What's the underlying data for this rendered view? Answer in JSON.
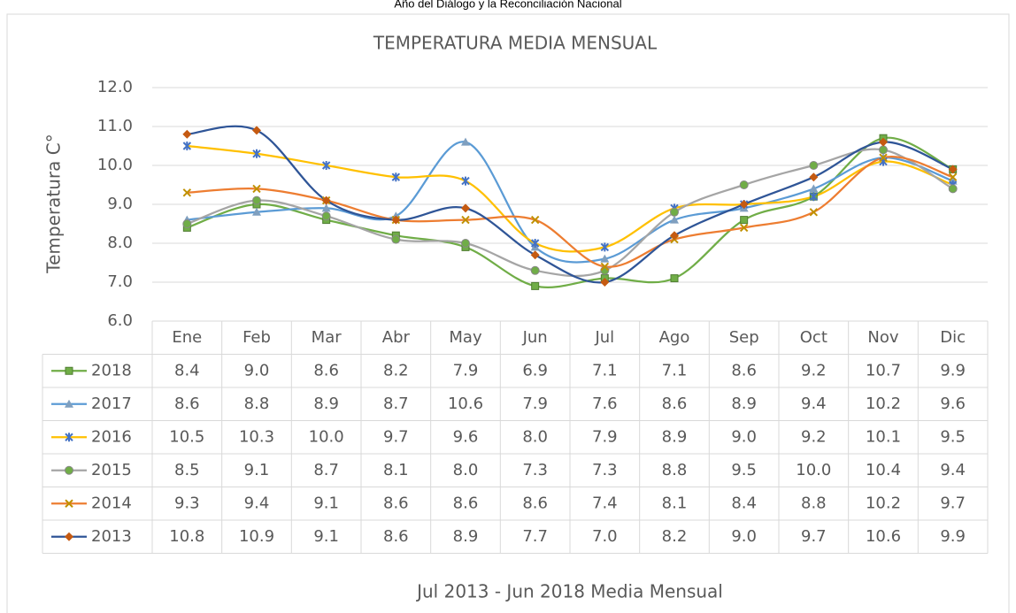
{
  "header": "Año del Diálogo y la Reconciliación Nacional",
  "chart_data": {
    "type": "line",
    "title": "TEMPERATURA MEDIA MENSUAL",
    "y_label": "Temperatura C°",
    "x_label": "Jul 2013 - Jun 2018 Media Mensual",
    "categories": [
      "Ene",
      "Feb",
      "Mar",
      "Abr",
      "May",
      "Jun",
      "Jul",
      "Ago",
      "Sep",
      "Oct",
      "Nov",
      "Dic"
    ],
    "ylim": [
      6,
      12
    ],
    "yticks": [
      {
        "value": 6,
        "label": "6.0"
      },
      {
        "value": 7,
        "label": "7.0"
      },
      {
        "value": 8,
        "label": "8.0"
      },
      {
        "value": 9,
        "label": "9.0"
      },
      {
        "value": 10,
        "label": "10.0"
      },
      {
        "value": 11,
        "label": "11.0"
      },
      {
        "value": 12,
        "label": "12.0"
      }
    ],
    "grid": true,
    "smooth": true,
    "data_table": true,
    "series": [
      {
        "name": "2018",
        "color": "#70ad47",
        "marker": "square",
        "marker_color": "#70ad47",
        "values": [
          8.4,
          9.0,
          8.6,
          8.2,
          7.9,
          6.9,
          7.1,
          7.1,
          8.6,
          9.2,
          10.7,
          9.9
        ],
        "value_labels": [
          "8.4",
          "9.0",
          "8.6",
          "8.2",
          "7.9",
          "6.9",
          "7.1",
          "7.1",
          "8.6",
          "9.2",
          "10.7",
          "9.9"
        ]
      },
      {
        "name": "2017",
        "color": "#5b9bd5",
        "marker": "triangle",
        "marker_color": "#7f9fbf",
        "values": [
          8.6,
          8.8,
          8.9,
          8.7,
          10.6,
          7.9,
          7.6,
          8.6,
          8.9,
          9.4,
          10.2,
          9.6
        ],
        "value_labels": [
          "8.6",
          "8.8",
          "8.9",
          "8.7",
          "10.6",
          "7.9",
          "7.6",
          "8.6",
          "8.9",
          "9.4",
          "10.2",
          "9.6"
        ]
      },
      {
        "name": "2016",
        "color": "#ffc000",
        "marker": "star",
        "marker_color": "#4472c4",
        "values": [
          10.5,
          10.3,
          10.0,
          9.7,
          9.6,
          8.0,
          7.9,
          8.9,
          9.0,
          9.2,
          10.1,
          9.5
        ],
        "value_labels": [
          "10.5",
          "10.3",
          "10.0",
          "9.7",
          "9.6",
          "8.0",
          "7.9",
          "8.9",
          "9.0",
          "9.2",
          "10.1",
          "9.5"
        ]
      },
      {
        "name": "2015",
        "color": "#a5a5a5",
        "marker": "circle",
        "marker_color": "#70ad47",
        "values": [
          8.5,
          9.1,
          8.7,
          8.1,
          8.0,
          7.3,
          7.3,
          8.8,
          9.5,
          10.0,
          10.4,
          9.4
        ],
        "value_labels": [
          "8.5",
          "9.1",
          "8.7",
          "8.1",
          "8.0",
          "7.3",
          "7.3",
          "8.8",
          "9.5",
          "10.0",
          "10.4",
          "9.4"
        ]
      },
      {
        "name": "2014",
        "color": "#ed7d31",
        "marker": "x",
        "marker_color": "#c09000",
        "values": [
          9.3,
          9.4,
          9.1,
          8.6,
          8.6,
          8.6,
          7.4,
          8.1,
          8.4,
          8.8,
          10.2,
          9.7
        ],
        "value_labels": [
          "9.3",
          "9.4",
          "9.1",
          "8.6",
          "8.6",
          "8.6",
          "7.4",
          "8.1",
          "8.4",
          "8.8",
          "10.2",
          "9.7"
        ]
      },
      {
        "name": "2013",
        "color": "#2f5597",
        "marker": "diamond",
        "marker_color": "#c55a11",
        "values": [
          10.8,
          10.9,
          9.1,
          8.6,
          8.9,
          7.7,
          7.0,
          8.2,
          9.0,
          9.7,
          10.6,
          9.9
        ],
        "value_labels": [
          "10.8",
          "10.9",
          "9.1",
          "8.6",
          "8.9",
          "7.7",
          "7.0",
          "8.2",
          "9.0",
          "9.7",
          "10.6",
          "9.9"
        ]
      }
    ]
  }
}
